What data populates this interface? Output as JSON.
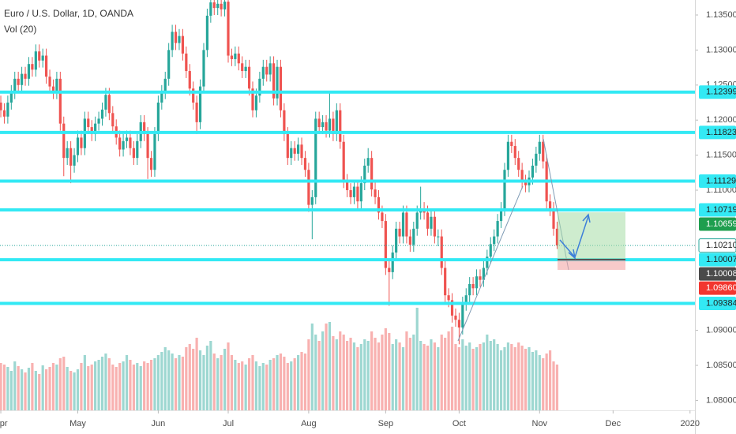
{
  "chart_data": {
    "type": "candlestick",
    "title": "Euro / U.S. Dollar, 1D, OANDA",
    "indicator": "Vol (20)",
    "up_color": "#26a69a",
    "down_color": "#ef5350",
    "grid": false,
    "xlim": [
      -0.23,
      198.4
    ],
    "ylim": [
      1.07858,
      1.13714
    ],
    "xticks": [
      {
        "value": 0,
        "label": "Apr"
      },
      {
        "value": 22,
        "label": "May"
      },
      {
        "value": 45,
        "label": "Jun"
      },
      {
        "value": 65,
        "label": "Jul"
      },
      {
        "value": 88,
        "label": "Aug"
      },
      {
        "value": 110,
        "label": "Sep"
      },
      {
        "value": 131,
        "label": "Oct"
      },
      {
        "value": 154,
        "label": "Nov"
      },
      {
        "value": 175,
        "label": "Dec"
      },
      {
        "value": 197,
        "label": "2020"
      }
    ],
    "yticks": [
      {
        "value": 1.135,
        "label": "1.13500"
      },
      {
        "value": 1.13,
        "label": "1.13000"
      },
      {
        "value": 1.125,
        "label": "1.12500"
      },
      {
        "value": 1.12,
        "label": "1.12000"
      },
      {
        "value": 1.115,
        "label": "1.11500"
      },
      {
        "value": 1.11,
        "label": "1.11000"
      },
      {
        "value": 1.09,
        "label": "1.09000"
      },
      {
        "value": 1.085,
        "label": "1.08500"
      },
      {
        "value": 1.08,
        "label": "1.08000"
      }
    ],
    "level_color": "#33e9f4",
    "levels": [
      1.12399,
      1.11823,
      1.11129,
      1.10719,
      1.10007,
      1.09384
    ],
    "price_labels": [
      {
        "value": 1.12399,
        "label": "1.12399",
        "color": "#33e9f4"
      },
      {
        "value": 1.11823,
        "label": "1.11823",
        "color": "#33e9f4"
      },
      {
        "value": 1.11129,
        "label": "1.11129",
        "color": "#33e9f4"
      },
      {
        "value": 1.10719,
        "label": "1.10719",
        "color": "#33e9f4"
      },
      {
        "value": 1.10659,
        "label": "1.10659",
        "color": "#1e9e4e"
      },
      {
        "value": 1.1021,
        "label": "1.10210",
        "color": "#ffffff"
      },
      {
        "value": 1.10007,
        "label": "1.10007",
        "color": "#33e9f4"
      },
      {
        "value": 1.10008,
        "label": "1.10008",
        "color": "#4a4a4a"
      },
      {
        "value": 1.0986,
        "label": "1.09860",
        "color": "#f2362f"
      },
      {
        "value": 1.09384,
        "label": "1.09384",
        "color": "#33e9f4"
      }
    ],
    "open": [
      1.1225,
      1.1214,
      1.1205,
      1.1225,
      1.124,
      1.1259,
      1.125,
      1.1266,
      1.1259,
      1.128,
      1.1272,
      1.1298,
      1.1285,
      1.1292,
      1.1262,
      1.1248,
      1.124,
      1.1259,
      1.1195,
      1.1146,
      1.116,
      1.1135,
      1.115,
      1.1175,
      1.116,
      1.1202,
      1.119,
      1.118,
      1.1195,
      1.1202,
      1.1215,
      1.1236,
      1.121,
      1.1191,
      1.1175,
      1.1158,
      1.117,
      1.1175,
      1.116,
      1.1146,
      1.117,
      1.1197,
      1.118,
      1.1146,
      1.1129,
      1.118,
      1.1225,
      1.124,
      1.1259,
      1.13,
      1.1326,
      1.131,
      1.132,
      1.1295,
      1.127,
      1.1245,
      1.1225,
      1.1197,
      1.1248,
      1.13,
      1.1349,
      1.1368,
      1.136,
      1.1366,
      1.1358,
      1.1369,
      1.1292,
      1.1287,
      1.1295,
      1.1281,
      1.127,
      1.1276,
      1.1245,
      1.1214,
      1.1235,
      1.1259,
      1.1276,
      1.1265,
      1.1281,
      1.1231,
      1.1276,
      1.1214,
      1.118,
      1.1146,
      1.116,
      1.1152,
      1.1165,
      1.1146,
      1.1129,
      1.1079,
      1.109,
      1.1202,
      1.119,
      1.1197,
      1.1185,
      1.1202,
      1.118,
      1.1214,
      1.1169,
      1.1113,
      1.11,
      1.109,
      1.1105,
      1.1084,
      1.111,
      1.1135,
      1.1146,
      1.1101,
      1.109,
      1.1068,
      1.1056,
      1.0989,
      1.0983,
      1.1011,
      1.1045,
      1.1034,
      1.1068,
      1.1034,
      1.1022,
      1.1045,
      1.1068,
      1.1073,
      1.1068,
      1.1045,
      1.1062,
      1.1034,
      1.1034,
      1.0989,
      1.095,
      1.0943,
      1.0921,
      1.0915,
      1.0904,
      1.0938,
      1.095,
      1.0966,
      1.096,
      1.0977,
      1.0972,
      1.0989,
      1.1005,
      1.1023,
      1.1034,
      1.1056,
      1.1073,
      1.1129,
      1.1169,
      1.1163,
      1.1146,
      1.1129,
      1.1112,
      1.1107,
      1.1118,
      1.1135,
      1.1152,
      1.1169,
      1.1141,
      1.1084,
      1.1073,
      1.1045
    ],
    "high": [
      1.1235,
      1.1224,
      1.1235,
      1.125,
      1.1269,
      1.1269,
      1.1276,
      1.1276,
      1.129,
      1.129,
      1.1308,
      1.1308,
      1.1302,
      1.1302,
      1.1272,
      1.1258,
      1.1269,
      1.1269,
      1.1205,
      1.117,
      1.117,
      1.116,
      1.1185,
      1.1185,
      1.1212,
      1.1212,
      1.12,
      1.1205,
      1.1212,
      1.1225,
      1.1246,
      1.1246,
      1.122,
      1.1201,
      1.1185,
      1.118,
      1.1185,
      1.1185,
      1.117,
      1.118,
      1.1207,
      1.1207,
      1.119,
      1.1156,
      1.119,
      1.1235,
      1.125,
      1.1269,
      1.131,
      1.1336,
      1.1336,
      1.133,
      1.133,
      1.1305,
      1.128,
      1.1255,
      1.1235,
      1.1258,
      1.131,
      1.1359,
      1.1378,
      1.1378,
      1.1376,
      1.1376,
      1.1379,
      1.1375,
      1.1302,
      1.1305,
      1.1305,
      1.1291,
      1.1286,
      1.1286,
      1.1255,
      1.1245,
      1.1269,
      1.1286,
      1.1286,
      1.1291,
      1.1291,
      1.1286,
      1.1286,
      1.1224,
      1.119,
      1.117,
      1.117,
      1.1175,
      1.1175,
      1.1156,
      1.1139,
      1.11,
      1.1212,
      1.1212,
      1.1207,
      1.1207,
      1.124,
      1.1212,
      1.1224,
      1.1224,
      1.1179,
      1.1123,
      1.111,
      1.1115,
      1.1115,
      1.112,
      1.1145,
      1.116,
      1.1156,
      1.1111,
      1.11,
      1.1078,
      1.1066,
      1.0999,
      1.1021,
      1.1055,
      1.1055,
      1.1078,
      1.1078,
      1.1044,
      1.1055,
      1.1078,
      1.1105,
      1.1083,
      1.1078,
      1.1072,
      1.1072,
      1.1044,
      1.1044,
      1.0999,
      1.096,
      1.0953,
      1.0931,
      1.0925,
      1.0948,
      1.096,
      1.0976,
      1.0976,
      1.0987,
      1.0987,
      1.0999,
      1.1015,
      1.1033,
      1.1044,
      1.1066,
      1.1083,
      1.1139,
      1.1179,
      1.1179,
      1.1173,
      1.1156,
      1.1139,
      1.1122,
      1.1128,
      1.1145,
      1.1162,
      1.1179,
      1.1179,
      1.1151,
      1.1094,
      1.1083,
      1.1055
    ],
    "low": [
      1.1204,
      1.1195,
      1.1195,
      1.1215,
      1.123,
      1.124,
      1.124,
      1.1249,
      1.1249,
      1.1262,
      1.1262,
      1.1275,
      1.1275,
      1.1252,
      1.1238,
      1.123,
      1.123,
      1.1185,
      1.112,
      1.1136,
      1.111,
      1.1125,
      1.114,
      1.115,
      1.115,
      1.118,
      1.117,
      1.117,
      1.1185,
      1.1192,
      1.1205,
      1.12,
      1.1181,
      1.1165,
      1.1148,
      1.1148,
      1.116,
      1.115,
      1.1136,
      1.1136,
      1.116,
      1.117,
      1.1116,
      1.1119,
      1.1119,
      1.117,
      1.1215,
      1.123,
      1.1249,
      1.129,
      1.13,
      1.13,
      1.1285,
      1.126,
      1.1235,
      1.1215,
      1.118,
      1.1187,
      1.1238,
      1.129,
      1.1339,
      1.135,
      1.135,
      1.1348,
      1.1348,
      1.1282,
      1.1277,
      1.1277,
      1.1271,
      1.126,
      1.126,
      1.1235,
      1.1204,
      1.1204,
      1.1225,
      1.1249,
      1.1255,
      1.1255,
      1.1221,
      1.1221,
      1.1204,
      1.117,
      1.1136,
      1.1136,
      1.1142,
      1.1142,
      1.1136,
      1.1119,
      1.1069,
      1.103,
      1.108,
      1.118,
      1.118,
      1.1175,
      1.1175,
      1.117,
      1.117,
      1.1159,
      1.1103,
      1.109,
      1.108,
      1.108,
      1.1074,
      1.1074,
      1.11,
      1.1125,
      1.1091,
      1.108,
      1.1058,
      1.1046,
      1.0979,
      1.0935,
      1.0973,
      1.1001,
      1.1024,
      1.1024,
      1.1024,
      1.1012,
      1.1012,
      1.1035,
      1.1058,
      1.1058,
      1.1035,
      1.1035,
      1.1024,
      1.102,
      1.0979,
      1.094,
      1.0933,
      1.0911,
      1.0905,
      1.088,
      1.0894,
      1.0928,
      1.094,
      1.095,
      1.095,
      1.0962,
      1.0962,
      1.0979,
      1.0995,
      1.1013,
      1.1024,
      1.1046,
      1.1063,
      1.1119,
      1.1153,
      1.1136,
      1.1119,
      1.1102,
      1.1097,
      1.1097,
      1.1108,
      1.1125,
      1.1142,
      1.1131,
      1.1074,
      1.1063,
      1.1035,
      1.1016
    ],
    "close": [
      1.1214,
      1.1205,
      1.1225,
      1.124,
      1.1259,
      1.125,
      1.1266,
      1.1259,
      1.128,
      1.1272,
      1.1298,
      1.1285,
      1.1292,
      1.1262,
      1.1248,
      1.124,
      1.1259,
      1.1195,
      1.1146,
      1.116,
      1.1135,
      1.115,
      1.1175,
      1.116,
      1.1202,
      1.119,
      1.118,
      1.1195,
      1.1202,
      1.1215,
      1.1236,
      1.121,
      1.1191,
      1.1175,
      1.1158,
      1.117,
      1.1175,
      1.116,
      1.1146,
      1.117,
      1.1197,
      1.118,
      1.1146,
      1.1129,
      1.118,
      1.1225,
      1.124,
      1.1259,
      1.13,
      1.1326,
      1.131,
      1.132,
      1.1295,
      1.127,
      1.1245,
      1.1225,
      1.1197,
      1.1248,
      1.13,
      1.1349,
      1.1368,
      1.136,
      1.1366,
      1.1358,
      1.1369,
      1.1292,
      1.1287,
      1.1295,
      1.1281,
      1.127,
      1.1276,
      1.1245,
      1.1214,
      1.1235,
      1.1259,
      1.1276,
      1.1265,
      1.1281,
      1.1231,
      1.1276,
      1.1214,
      1.118,
      1.1146,
      1.116,
      1.1152,
      1.1165,
      1.1146,
      1.1129,
      1.1079,
      1.109,
      1.1202,
      1.119,
      1.1197,
      1.1185,
      1.1202,
      1.118,
      1.1214,
      1.1169,
      1.1113,
      1.11,
      1.109,
      1.1105,
      1.1084,
      1.111,
      1.1135,
      1.1146,
      1.1101,
      1.109,
      1.1068,
      1.1056,
      1.0989,
      1.0983,
      1.1011,
      1.1045,
      1.1034,
      1.1068,
      1.1034,
      1.1022,
      1.1045,
      1.1068,
      1.1073,
      1.1068,
      1.1045,
      1.1062,
      1.1034,
      1.1034,
      1.0989,
      1.095,
      1.0943,
      1.0921,
      1.0915,
      1.0904,
      1.0938,
      1.095,
      1.0966,
      1.096,
      1.0977,
      1.0972,
      1.0989,
      1.1005,
      1.1023,
      1.1034,
      1.1056,
      1.1073,
      1.1129,
      1.1169,
      1.1163,
      1.1146,
      1.1129,
      1.1112,
      1.1107,
      1.1118,
      1.1135,
      1.1152,
      1.1169,
      1.1141,
      1.1084,
      1.1073,
      1.1045,
      1.1021
    ],
    "volume": [
      60,
      58,
      55,
      50,
      62,
      56,
      52,
      48,
      54,
      60,
      50,
      46,
      57,
      52,
      55,
      60,
      58,
      66,
      68,
      55,
      50,
      48,
      52,
      60,
      70,
      56,
      58,
      62,
      64,
      68,
      72,
      66,
      58,
      55,
      60,
      62,
      70,
      64,
      58,
      60,
      56,
      62,
      60,
      64,
      66,
      70,
      74,
      80,
      76,
      72,
      66,
      70,
      68,
      80,
      84,
      78,
      92,
      76,
      70,
      82,
      88,
      72,
      66,
      70,
      78,
      86,
      70,
      64,
      60,
      62,
      58,
      66,
      70,
      62,
      56,
      60,
      58,
      64,
      66,
      70,
      72,
      68,
      60,
      62,
      66,
      70,
      74,
      72,
      90,
      110,
      96,
      88,
      100,
      110,
      112,
      94,
      90,
      100,
      96,
      88,
      92,
      86,
      80,
      84,
      90,
      88,
      100,
      92,
      86,
      96,
      104,
      98,
      84,
      90,
      86,
      80,
      100,
      92,
      96,
      130,
      88,
      84,
      82,
      90,
      86,
      80,
      96,
      92,
      100,
      106,
      84,
      80,
      90,
      82,
      86,
      78,
      80,
      84,
      86,
      96,
      88,
      90,
      84,
      76,
      80,
      86,
      84,
      80,
      86,
      82,
      78,
      80,
      74,
      76,
      70,
      66,
      72,
      76,
      62,
      58
    ]
  }
}
